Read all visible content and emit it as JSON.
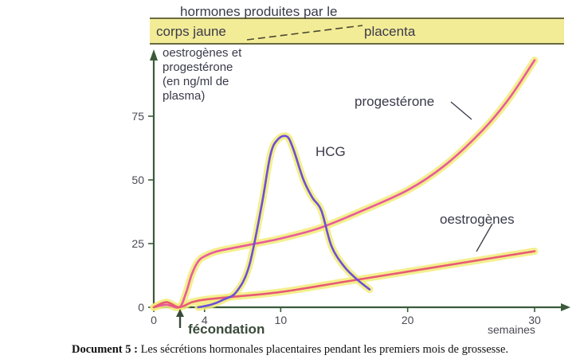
{
  "chart_data": {
    "type": "line",
    "band": {
      "title": "hormones produites par le",
      "left_label": "corps jaune",
      "right_label": "placenta"
    },
    "ylabel_lines": [
      "oestrogènes et",
      "progestérone",
      "(en ng/ml de",
      "plasma)"
    ],
    "xlabel": "semaines",
    "x_event_label": "fécondation",
    "x_event_at": 2,
    "xlim": [
      0,
      30
    ],
    "ylim": [
      0,
      100
    ],
    "x_ticks": [
      0,
      4,
      10,
      20,
      30
    ],
    "y_ticks": [
      0,
      25,
      50,
      75
    ],
    "series": [
      {
        "name": "progestérone",
        "color": "#e85a9b",
        "highlight": "#f2ec7a",
        "x": [
          0,
          1,
          2,
          2.5,
          3,
          3.5,
          4,
          5,
          7,
          10,
          13,
          16,
          20,
          23,
          26,
          28,
          30
        ],
        "y": [
          0,
          1,
          0,
          5,
          13,
          18,
          20,
          22,
          24,
          27,
          31,
          37,
          46,
          56,
          70,
          82,
          97
        ]
      },
      {
        "name": "oestrogènes",
        "color": "#e85a74",
        "highlight": "#f2ec7a",
        "x": [
          0,
          1,
          2,
          3,
          4,
          6,
          10,
          15,
          20,
          25,
          30
        ],
        "y": [
          0,
          2,
          0,
          2,
          3,
          4,
          6,
          10,
          14,
          18,
          22
        ]
      },
      {
        "name": "HCG",
        "color": "#6b4fd8",
        "highlight": "#f2ec7a",
        "x": [
          3.5,
          4.5,
          5.5,
          6.5,
          7.5,
          8.5,
          9.2,
          9.8,
          10.5,
          11,
          11.8,
          12.5,
          13.2,
          14,
          15,
          16,
          17
        ],
        "y": [
          0,
          1,
          3,
          6,
          16,
          40,
          60,
          66,
          67,
          62,
          50,
          43,
          38,
          24,
          16,
          11,
          7
        ]
      }
    ]
  },
  "caption": {
    "label": "Document 5 :",
    "text": " Les sécrétions hormonales placentaires pendant les premiers mois de grossesse."
  }
}
